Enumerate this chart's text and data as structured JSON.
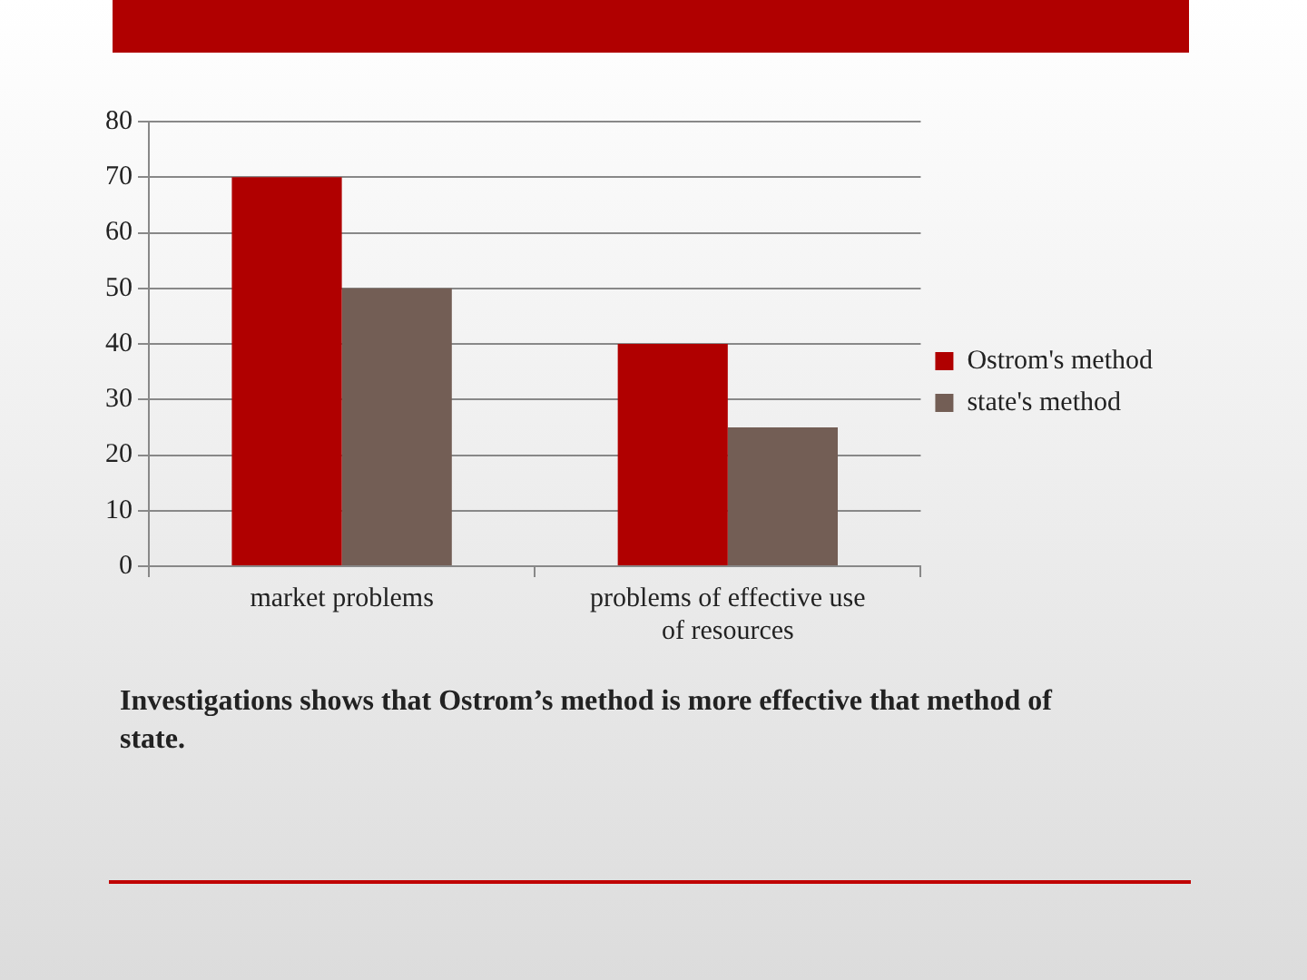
{
  "chart_data": {
    "type": "bar",
    "categories": [
      "market problems",
      "problems of effective use of resources"
    ],
    "series": [
      {
        "name": "Ostrom's method",
        "color": "#b00000",
        "values": [
          70,
          40
        ]
      },
      {
        "name": "state's method",
        "color": "#735e55",
        "values": [
          50,
          25
        ]
      }
    ],
    "ylim": [
      0,
      80
    ],
    "yticks": [
      0,
      10,
      20,
      30,
      40,
      50,
      60,
      70,
      80
    ],
    "grid": "y",
    "legend": "right",
    "annotations": [
      "Investigations shows that Ostrom’s method is more effective that method of state."
    ]
  }
}
